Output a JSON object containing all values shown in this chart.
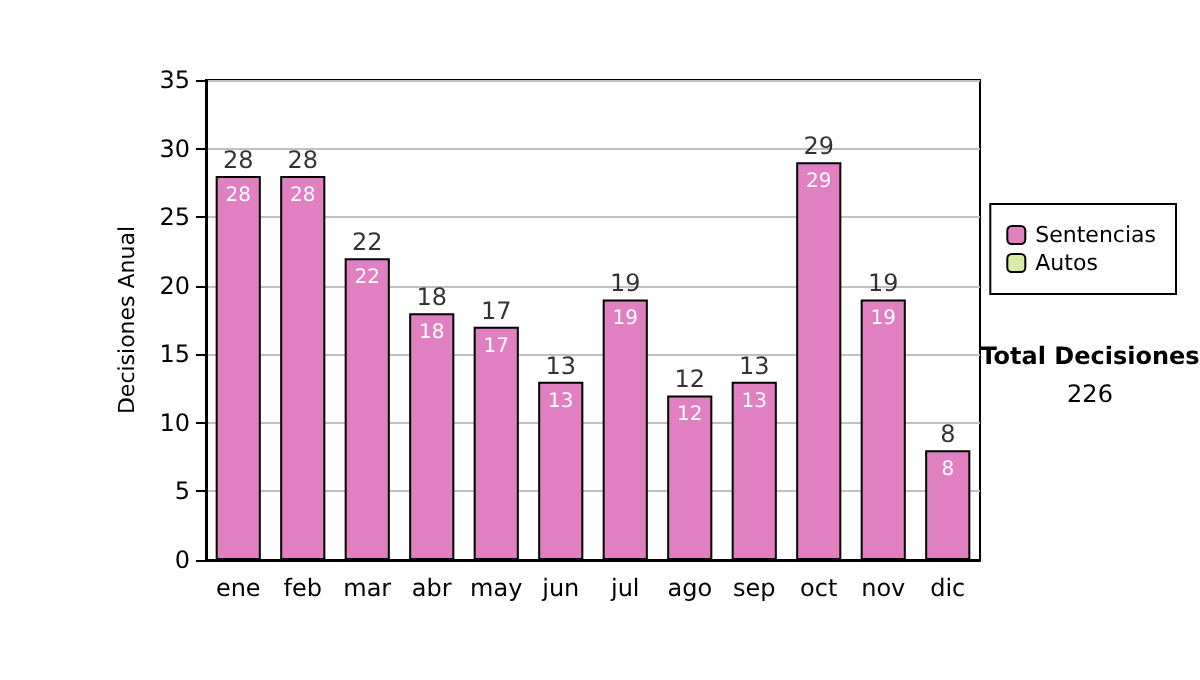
{
  "chart_data": {
    "type": "bar",
    "stacked": true,
    "ylabel": "Decisiones Anual",
    "categories": [
      "ene",
      "feb",
      "mar",
      "abr",
      "may",
      "jun",
      "jul",
      "ago",
      "sep",
      "oct",
      "nov",
      "dic"
    ],
    "series": [
      {
        "name": "Sentencias",
        "color": "#e080c0",
        "values": [
          28,
          28,
          22,
          18,
          17,
          13,
          19,
          12,
          13,
          29,
          19,
          8
        ],
        "value_labels": [
          "28",
          "28",
          "22",
          "18",
          "17",
          "13",
          "19",
          "12",
          "13",
          "29",
          "19",
          "8"
        ]
      },
      {
        "name": "Autos",
        "color": "#d8eca8",
        "values": [
          0,
          0,
          0,
          0,
          0,
          0,
          0,
          0,
          0,
          0,
          0,
          0
        ]
      }
    ],
    "totals": [
      "28",
      "28",
      "22",
      "18",
      "17",
      "13",
      "19",
      "12",
      "13",
      "29",
      "19",
      "8"
    ],
    "ylim": [
      0,
      35
    ],
    "yticks": [
      0,
      5,
      10,
      15,
      20,
      25,
      30,
      35
    ],
    "grid": "y",
    "legend": "right",
    "annotations": [
      "Total Decisiones",
      "226"
    ]
  }
}
